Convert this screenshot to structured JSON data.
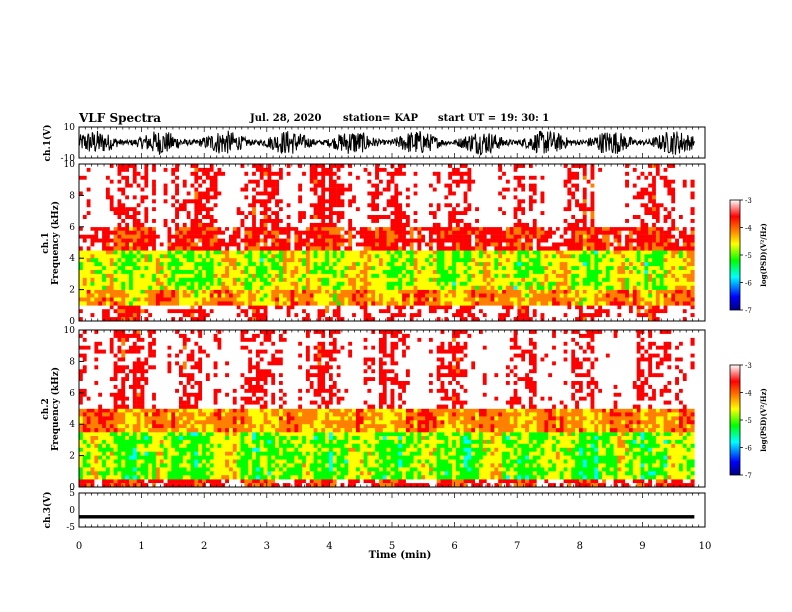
{
  "header": {
    "title": "VLF Spectra",
    "date": "Jul. 28, 2020",
    "station_label": "station=",
    "station": "KAP",
    "start_label": "start UT =",
    "start_time": "19: 30: 1"
  },
  "colors": {
    "waveform": "#000000",
    "colormap": [
      "#ffffff",
      "#ff0000",
      "#ff8000",
      "#ffff00",
      "#00ff00",
      "#00ffff",
      "#0000ff",
      "#000080"
    ]
  },
  "chart_data": [
    {
      "type": "line",
      "name": "ch1-waveform",
      "ylabel": "ch.1(V)",
      "ylim": [
        -10,
        10
      ],
      "yticks": [
        "10",
        "-10"
      ],
      "xlim": [
        0,
        10
      ],
      "description_level": "dense oscillating waveform spanning roughly -8 to +8 V over the full interval"
    },
    {
      "type": "heatmap",
      "name": "ch1-spectrogram",
      "ylabel": "ch.1\nFrequency (kHz)",
      "ylim": [
        0,
        10
      ],
      "yticks": [
        "0",
        "2",
        "4",
        "6",
        "8",
        "10"
      ],
      "xlim": [
        0,
        9.83
      ],
      "colorbar": {
        "label": "log(PSD)(V²/Hz)",
        "range": [
          -7,
          -3
        ],
        "ticks": [
          "-3",
          "-4",
          "-5",
          "-6",
          "-7"
        ]
      },
      "band_structure": [
        {
          "freq_range": [
            0,
            1.0
          ],
          "level": -3.2
        },
        {
          "freq_range": [
            1.0,
            2.0
          ],
          "level": -4.3
        },
        {
          "freq_range": [
            2.0,
            4.5
          ],
          "level": -4.8
        },
        {
          "freq_range": [
            4.5,
            6.0
          ],
          "level": -3.6
        },
        {
          "freq_range": [
            6.0,
            10.0
          ],
          "level": -3.1
        }
      ]
    },
    {
      "type": "heatmap",
      "name": "ch2-spectrogram",
      "ylabel": "ch.2\nFrequency (kHz)",
      "ylim": [
        0,
        10
      ],
      "yticks": [
        "0",
        "2",
        "4",
        "6",
        "8",
        "10"
      ],
      "xlim": [
        0,
        9.83
      ],
      "colorbar": {
        "label": "log(PSD)(V²/Hz)",
        "range": [
          -7,
          -3
        ],
        "ticks": [
          "-3",
          "-4",
          "-5",
          "-6",
          "-7"
        ]
      },
      "band_structure": [
        {
          "freq_range": [
            0,
            0.5
          ],
          "level": -3.5
        },
        {
          "freq_range": [
            0.5,
            3.5
          ],
          "level": -5.0
        },
        {
          "freq_range": [
            3.5,
            5.0
          ],
          "level": -4.2
        },
        {
          "freq_range": [
            5.0,
            10.0
          ],
          "level": -3.1
        }
      ]
    },
    {
      "type": "line",
      "name": "ch3-waveform",
      "ylabel": "ch.3(V)",
      "ylim": [
        -5,
        5
      ],
      "yticks": [
        "5",
        "0",
        "-5"
      ],
      "xlim": [
        0,
        9.83
      ],
      "level_band": [
        -2.5,
        -1.5
      ]
    }
  ],
  "xaxis": {
    "label": "Time (min)",
    "range": [
      0,
      10
    ],
    "ticks": [
      "0",
      "1",
      "2",
      "3",
      "4",
      "5",
      "6",
      "7",
      "8",
      "9",
      "10"
    ]
  }
}
